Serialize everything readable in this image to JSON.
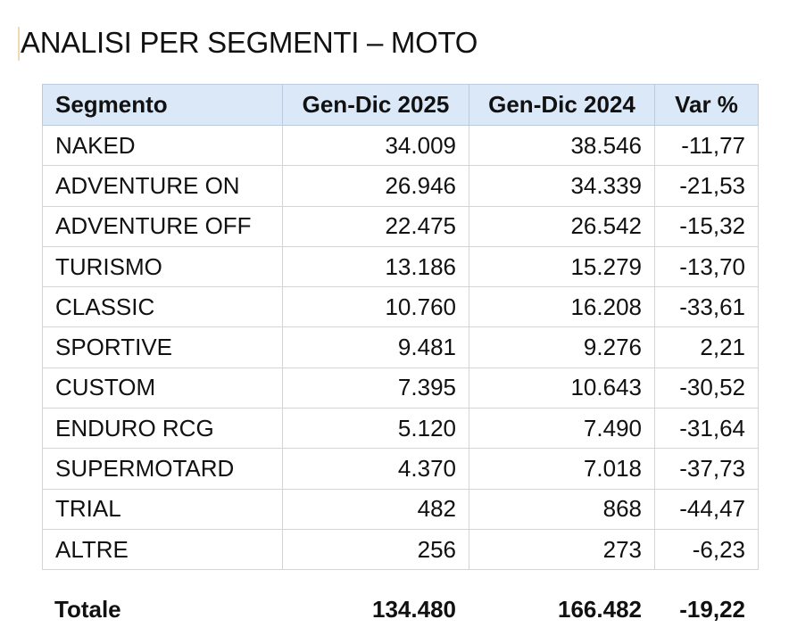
{
  "title": "ANALISI PER SEGMENTI – MOTO",
  "table": {
    "headers": [
      "Segmento",
      "Gen-Dic 2025",
      "Gen-Dic 2024",
      "Var %"
    ],
    "rows": [
      {
        "segmento": "NAKED",
        "y2025": "34.009",
        "y2024": "38.546",
        "var": "-11,77"
      },
      {
        "segmento": "ADVENTURE ON",
        "y2025": "26.946",
        "y2024": "34.339",
        "var": "-21,53"
      },
      {
        "segmento": "ADVENTURE OFF",
        "y2025": "22.475",
        "y2024": "26.542",
        "var": "-15,32"
      },
      {
        "segmento": "TURISMO",
        "y2025": "13.186",
        "y2024": "15.279",
        "var": "-13,70"
      },
      {
        "segmento": "CLASSIC",
        "y2025": "10.760",
        "y2024": "16.208",
        "var": "-33,61"
      },
      {
        "segmento": "SPORTIVE",
        "y2025": "9.481",
        "y2024": "9.276",
        "var": "2,21"
      },
      {
        "segmento": "CUSTOM",
        "y2025": "7.395",
        "y2024": "10.643",
        "var": "-30,52"
      },
      {
        "segmento": "ENDURO RCG",
        "y2025": "5.120",
        "y2024": "7.490",
        "var": "-31,64"
      },
      {
        "segmento": "SUPERMOTARD",
        "y2025": "4.370",
        "y2024": "7.018",
        "var": "-37,73"
      },
      {
        "segmento": "TRIAL",
        "y2025": "482",
        "y2024": "868",
        "var": "-44,47"
      },
      {
        "segmento": "ALTRE",
        "y2025": "256",
        "y2024": "273",
        "var": "-6,23"
      }
    ],
    "total": {
      "label": "Totale",
      "y2025": "134.480",
      "y2024": "166.482",
      "var": "-19,22"
    }
  },
  "colors": {
    "header_bg": "#dbe8f8",
    "grid": "#d4d4d4",
    "text": "#111111"
  }
}
